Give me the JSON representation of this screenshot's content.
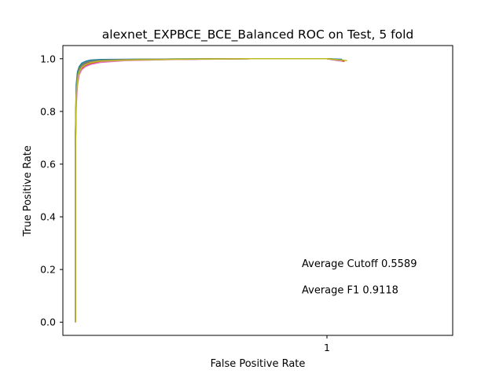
{
  "chart_data": {
    "type": "line",
    "title": "alexnet_EXPBCE_BCE_Balanced ROC on Test, 5 fold",
    "xlabel": "False Positive Rate",
    "ylabel": "True Positive Rate",
    "xlim": [
      -0.05,
      1.5
    ],
    "ylim": [
      -0.05,
      1.05
    ],
    "x_ticks": [
      1
    ],
    "x_tick_labels": [
      "1"
    ],
    "y_ticks": [
      0.0,
      0.2,
      0.4,
      0.6,
      0.8,
      1.0
    ],
    "y_tick_labels": [
      "0.0",
      "0.2",
      "0.4",
      "0.6",
      "0.8",
      "1.0"
    ],
    "grid": false,
    "legend": false,
    "series": [
      {
        "color": "#1f77b4",
        "x": [
          0,
          0,
          0.003,
          0.008,
          0.015,
          0.025,
          0.04,
          0.06,
          0.1,
          0.2,
          0.4,
          0.7,
          1.0,
          1.06
        ],
        "y": [
          0,
          0.72,
          0.9,
          0.95,
          0.97,
          0.983,
          0.99,
          0.995,
          0.997,
          0.998,
          0.999,
          1.0,
          1.0,
          0.998
        ]
      },
      {
        "color": "#ff7f0e",
        "x": [
          0,
          0,
          0.003,
          0.008,
          0.015,
          0.025,
          0.04,
          0.06,
          0.1,
          0.2,
          0.4,
          0.7,
          1.0,
          1.07
        ],
        "y": [
          0,
          0.68,
          0.86,
          0.92,
          0.95,
          0.965,
          0.975,
          0.983,
          0.99,
          0.995,
          0.998,
          1.0,
          1.0,
          0.993
        ]
      },
      {
        "color": "#2ca02c",
        "x": [
          0,
          0,
          0.003,
          0.008,
          0.015,
          0.025,
          0.04,
          0.06,
          0.1,
          0.2,
          0.4,
          0.7,
          1.0,
          1.02
        ],
        "y": [
          0,
          0.7,
          0.88,
          0.94,
          0.965,
          0.978,
          0.986,
          0.991,
          0.995,
          0.997,
          0.999,
          1.0,
          1.0,
          1.0
        ]
      },
      {
        "color": "#d62728",
        "x": [
          0,
          0,
          0.003,
          0.008,
          0.015,
          0.025,
          0.04,
          0.06,
          0.1,
          0.2,
          0.4,
          0.7,
          1.0,
          1.07
        ],
        "y": [
          0,
          0.65,
          0.84,
          0.91,
          0.945,
          0.962,
          0.972,
          0.98,
          0.988,
          0.994,
          0.998,
          1.0,
          1.0,
          0.99
        ]
      },
      {
        "color": "#9467bd",
        "x": [
          0,
          0,
          0.003,
          0.008,
          0.015,
          0.025,
          0.04,
          0.06,
          0.1,
          0.2,
          0.4,
          0.7,
          1.0,
          1.04
        ],
        "y": [
          0,
          0.67,
          0.85,
          0.915,
          0.95,
          0.968,
          0.978,
          0.986,
          0.992,
          0.996,
          0.998,
          1.0,
          1.0,
          0.996
        ]
      },
      {
        "color": "#8c564b",
        "x": [
          0,
          0,
          0.003,
          0.008,
          0.015,
          0.025,
          0.04,
          0.06,
          0.1,
          0.2,
          0.4,
          0.7,
          1.0,
          1.05
        ],
        "y": [
          0,
          0.69,
          0.87,
          0.93,
          0.96,
          0.974,
          0.983,
          0.989,
          0.993,
          0.996,
          0.998,
          1.0,
          1.0,
          0.992
        ]
      },
      {
        "color": "#e377c2",
        "x": [
          0,
          0,
          0.003,
          0.008,
          0.015,
          0.025,
          0.04,
          0.06,
          0.1,
          0.2,
          0.4,
          0.7,
          1.0,
          1.06
        ],
        "y": [
          0,
          0.64,
          0.82,
          0.9,
          0.94,
          0.958,
          0.97,
          0.978,
          0.986,
          0.993,
          0.997,
          1.0,
          1.0,
          0.991
        ]
      },
      {
        "color": "#7f7f7f",
        "x": [
          0,
          0,
          0.003,
          0.008,
          0.015,
          0.025,
          0.04,
          0.06,
          0.1,
          0.2,
          0.4,
          0.7,
          1.0,
          1.07
        ],
        "y": [
          0,
          0.7,
          0.875,
          0.935,
          0.96,
          0.975,
          0.985,
          0.99,
          0.994,
          0.997,
          0.999,
          1.0,
          1.0,
          0.994
        ]
      },
      {
        "color": "#bcbd22",
        "x": [
          0,
          0,
          0.003,
          0.008,
          0.015,
          0.025,
          0.04,
          0.06,
          0.1,
          0.2,
          0.4,
          0.7,
          1.0,
          1.08
        ],
        "y": [
          0,
          0.66,
          0.85,
          0.92,
          0.95,
          0.967,
          0.977,
          0.985,
          0.991,
          0.995,
          0.998,
          1.0,
          1.0,
          0.993
        ]
      }
    ],
    "annotations": [
      {
        "text": "Average Cutoff 0.5589",
        "x": 0.9,
        "y": 0.21
      },
      {
        "text": "Average F1 0.9118",
        "x": 0.9,
        "y": 0.11
      }
    ]
  }
}
